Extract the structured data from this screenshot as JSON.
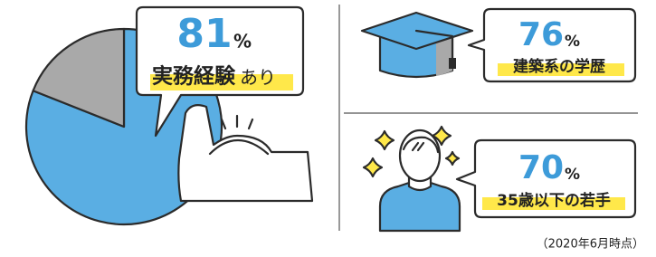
{
  "chart_data": {
    "type": "pie",
    "values": [
      81,
      19
    ],
    "colors": [
      "#5aaee3",
      "#a9a9a9"
    ]
  },
  "stats": [
    {
      "unit": "%",
      "label": "実務経験",
      "label_suffix": "あり"
    },
    {
      "number": 76,
      "unit": "%",
      "label": "建築系の学歴"
    },
    {
      "number": 70,
      "unit": "%",
      "label": "35歳以下の若手"
    }
  ],
  "footnote": "（2020年6月時点）"
}
